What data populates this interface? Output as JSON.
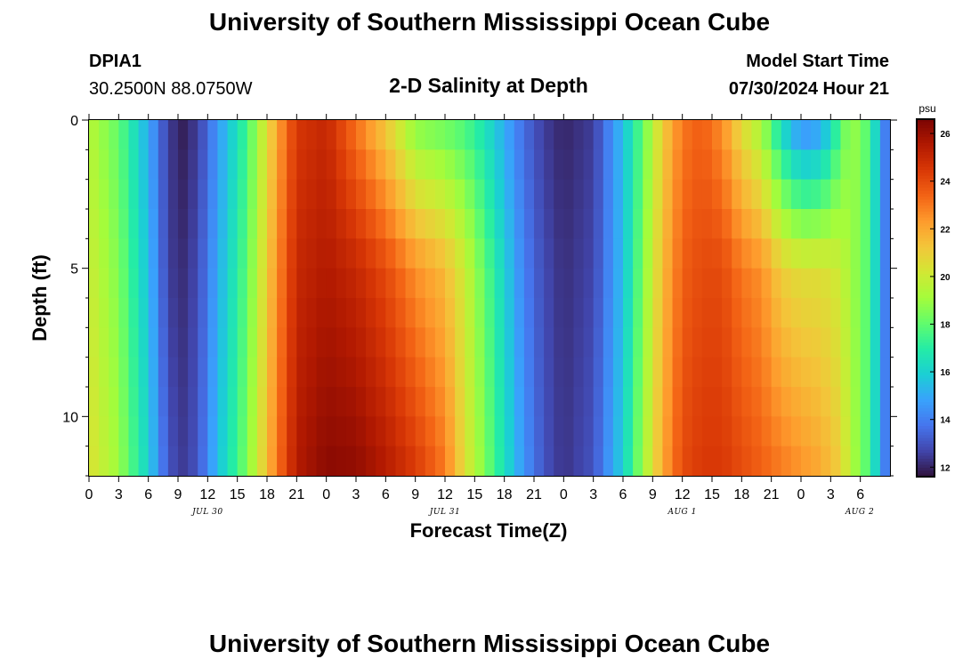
{
  "header": {
    "title": "University of Southern Mississippi Ocean Cube",
    "station_id": "DPIA1",
    "coords": "30.2500N  88.0750W",
    "subtitle": "2-D Salinity at Depth",
    "model_start_label": "Model Start Time",
    "model_start_value": "07/30/2024 Hour 21"
  },
  "footer": {
    "title": "University of Southern Mississippi Ocean Cube"
  },
  "colors": {
    "palette": [
      "#30123b",
      "#4145ab",
      "#4675ed",
      "#39a2fc",
      "#1bcfd4",
      "#24eca6",
      "#61fc6c",
      "#a4fc3b",
      "#d1e834",
      "#f3c63a",
      "#fe9b2d",
      "#f36315",
      "#d93806",
      "#b11901",
      "#7a0403"
    ]
  },
  "chart_data": {
    "type": "heatmap",
    "title": "2-D Salinity at Depth",
    "xlabel": "Forecast Time(Z)",
    "ylabel": "Depth (ft)",
    "x_hours_from_jul30_00z": [
      0,
      81
    ],
    "x_tick_labels": [
      "0",
      "3",
      "6",
      "9",
      "12",
      "15",
      "18",
      "21",
      "0",
      "3",
      "6",
      "9",
      "12",
      "15",
      "18",
      "21",
      "0",
      "3",
      "6",
      "9",
      "12",
      "15",
      "18",
      "21",
      "0",
      "3",
      "6"
    ],
    "date_labels": [
      {
        "label": "JUL 30",
        "hour": 12
      },
      {
        "label": "JUL 31",
        "hour": 36
      },
      {
        "label": "AUG 1",
        "hour": 60
      },
      {
        "label": "AUG 2",
        "hour": 84
      }
    ],
    "y_range": [
      0,
      12
    ],
    "y_tick_labels": [
      "0",
      "5",
      "10"
    ],
    "y_tick_values": [
      0,
      5,
      10
    ],
    "colorbar": {
      "unit": "psu",
      "range": [
        11.6,
        26.6
      ],
      "tick_labels": [
        "12",
        "14",
        "16",
        "18",
        "20",
        "22",
        "24",
        "26"
      ],
      "tick_values": [
        12,
        14,
        16,
        18,
        20,
        22,
        24,
        26
      ]
    },
    "depth_levels_ft": [
      0,
      1,
      2,
      3,
      4,
      5,
      6,
      7,
      8,
      9,
      10,
      11,
      12
    ],
    "time_knots_hours": [
      0,
      3,
      6,
      8,
      9.5,
      11,
      13,
      16,
      19,
      21,
      24,
      27,
      30,
      33,
      36,
      38,
      40,
      42,
      44,
      46,
      48,
      51,
      54,
      56,
      58,
      60,
      62,
      64,
      66,
      68,
      70,
      72,
      74,
      76,
      77,
      78,
      79,
      80,
      81
    ],
    "salinity_psu": {
      "surface_0ft": [
        19.5,
        18,
        15,
        12.5,
        11.9,
        12.5,
        14.5,
        17.5,
        22,
        24.5,
        25,
        23,
        21,
        18.5,
        18,
        17.5,
        16.5,
        15,
        13.5,
        12.5,
        12,
        12.5,
        15.5,
        18,
        21,
        23,
        23.5,
        22.5,
        20.5,
        19,
        16,
        14,
        14.5,
        17.5,
        19,
        18.5,
        17.5,
        15,
        13
      ],
      "mid_5ft": [
        20,
        18.5,
        15.5,
        12.5,
        12.2,
        12.8,
        15,
        18,
        22.5,
        25,
        25.5,
        25,
        24,
        22.5,
        21.5,
        20,
        18,
        16,
        14,
        12.8,
        12.2,
        12.7,
        15.5,
        18.5,
        21.5,
        23.5,
        24,
        24,
        23,
        22.5,
        21,
        20.5,
        20.5,
        20,
        19,
        18.5,
        17.5,
        15,
        13
      ],
      "bottom_12ft": [
        20.5,
        19,
        16,
        13,
        12.5,
        13,
        15.5,
        18.5,
        23,
        25.5,
        26.3,
        26.2,
        25.5,
        24.5,
        23,
        20.5,
        18.5,
        16.5,
        14.5,
        13,
        12.3,
        13,
        16,
        19,
        22,
        24,
        24.5,
        24.5,
        24,
        23.5,
        23,
        22.5,
        22,
        21,
        19.5,
        18.5,
        17.5,
        15,
        13
      ]
    }
  }
}
